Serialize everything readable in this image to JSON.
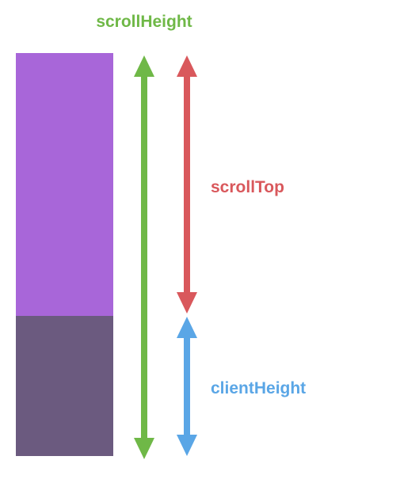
{
  "labels": {
    "scroll_height": "scrollHeight",
    "scroll_top": "scrollTop",
    "client_height": "clientHeight"
  },
  "colors": {
    "background": "#ffffff",
    "scrolled_region": "#a866d9",
    "visible_region": "#6b5a7f",
    "scroll_height": "#6fb847",
    "scroll_top": "#d9585c",
    "client_height": "#5aa6e6"
  },
  "arrows": [
    {
      "name": "scroll-height-arrow",
      "kind": "double-headed",
      "color_key": "scroll_height"
    },
    {
      "name": "scroll-top-arrow",
      "kind": "double-headed",
      "color_key": "scroll_top"
    },
    {
      "name": "client-height-arrow",
      "kind": "double-headed",
      "color_key": "client_height"
    }
  ]
}
